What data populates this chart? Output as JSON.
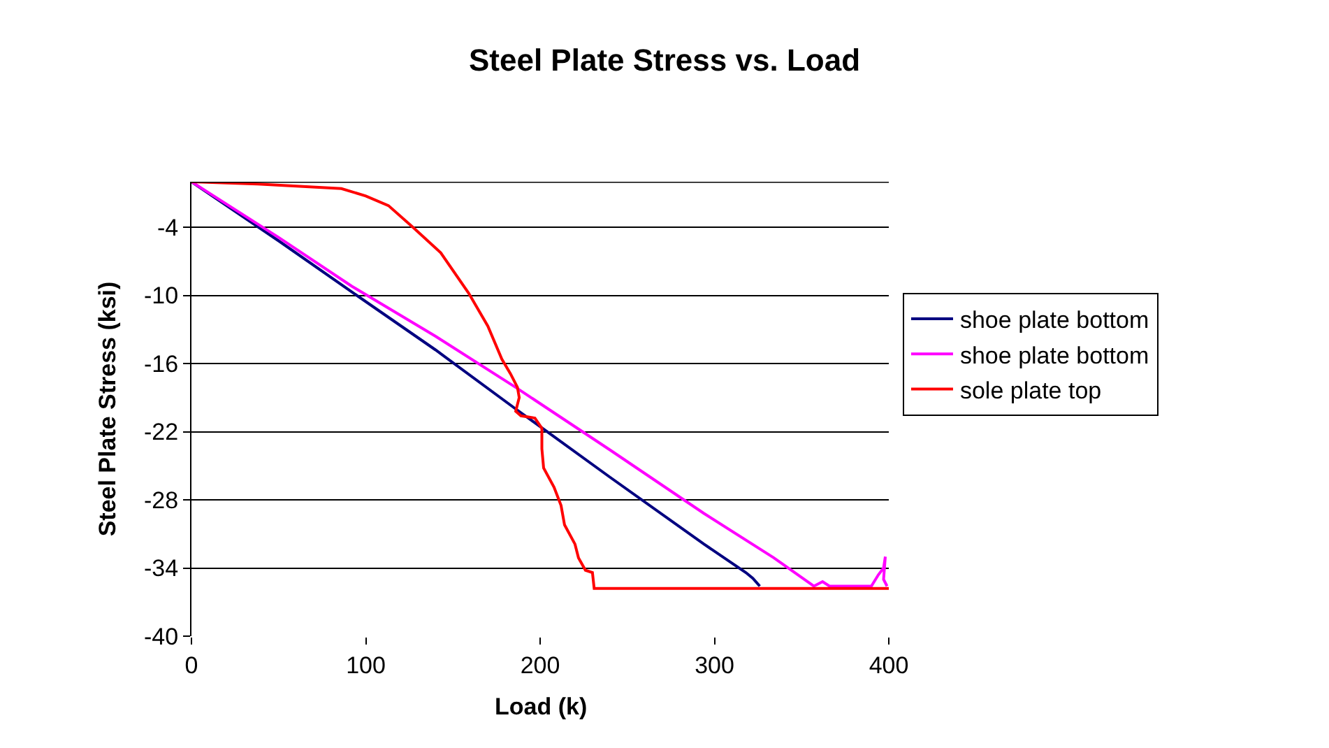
{
  "chart_data": {
    "type": "line",
    "title": "Steel Plate Stress vs. Load",
    "xlabel": "Load (k)",
    "ylabel": "Steel Plate Stress (ksi)",
    "xlim": [
      0,
      400
    ],
    "xticks": [
      0,
      100,
      200,
      300,
      400
    ],
    "ylim": [
      -40,
      0
    ],
    "yticks": [
      -4,
      -10,
      -16,
      -22,
      -28,
      -34,
      -40
    ],
    "grid": "y",
    "legend": "right",
    "marker": "none",
    "line_style": "solid",
    "series": [
      {
        "name": "shoe plate bottom",
        "color": "#000080",
        "x": [
          0,
          50,
          92,
          140,
          186,
          240,
          294,
          318,
          322,
          326
        ],
        "values": [
          0,
          -5.2,
          -9.7,
          -14.8,
          -20.0,
          -26.0,
          -31.9,
          -34.4,
          -34.9,
          -35.6
        ]
      },
      {
        "name": "shoe plate bottom",
        "color": "#ff00ff",
        "x": [
          0,
          50,
          92,
          140,
          186,
          240,
          294,
          334,
          357,
          362,
          366,
          390,
          394,
          397,
          398,
          397,
          399
        ],
        "values": [
          0,
          -4.9,
          -9.2,
          -13.6,
          -18.1,
          -23.6,
          -29.2,
          -33.1,
          -35.6,
          -35.2,
          -35.6,
          -35.6,
          -34.6,
          -34.0,
          -33.0,
          -35.0,
          -35.6
        ]
      },
      {
        "name": "sole plate top",
        "color": "#ff0000",
        "x": [
          0,
          38,
          86,
          100,
          113,
          127,
          143,
          159,
          170,
          178,
          183,
          187,
          188,
          186,
          189,
          197,
          201,
          201,
          202,
          208,
          212,
          214,
          220,
          222,
          226,
          230,
          231,
          400
        ],
        "values": [
          0,
          -0.2,
          -0.6,
          -1.25,
          -2.1,
          -4.0,
          -6.25,
          -9.8,
          -12.7,
          -15.6,
          -16.9,
          -18.1,
          -19.0,
          -20.2,
          -20.6,
          -20.8,
          -21.7,
          -23.5,
          -25.2,
          -26.9,
          -28.5,
          -30.2,
          -31.9,
          -33.1,
          -34.2,
          -34.4,
          -35.8,
          -35.8
        ]
      }
    ]
  }
}
